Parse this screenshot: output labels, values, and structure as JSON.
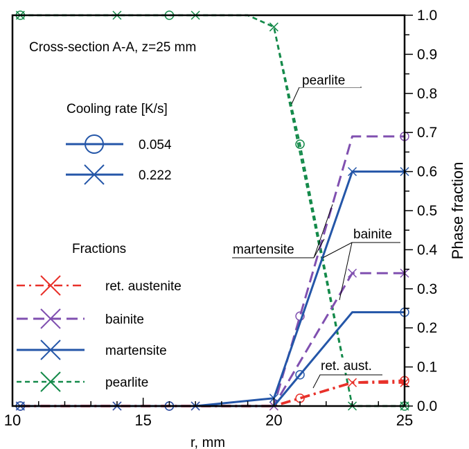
{
  "chart_data": {
    "type": "line",
    "title": "Cross-section A-A, z=25 mm",
    "xlabel": "r, mm",
    "ylabel": "Phase fraction",
    "xlim": [
      10,
      25
    ],
    "ylim": [
      0,
      1
    ],
    "x_ticks": [
      10,
      15,
      20,
      25
    ],
    "x_tick_labels": [
      "10",
      "15",
      "20",
      "25"
    ],
    "y_ticks": [
      0,
      0.1,
      0.2,
      0.3,
      0.4,
      0.5,
      0.6,
      0.7,
      0.8,
      0.9,
      1.0
    ],
    "y_tick_labels": [
      "0.0",
      "0.1",
      "0.2",
      "0.3",
      "0.4",
      "0.5",
      "0.6",
      "0.7",
      "0.8",
      "0.9",
      "1.0"
    ],
    "y_axis_position": "right",
    "grid": false,
    "legend_cooling": {
      "title": "Cooling rate [K/s]",
      "entries": [
        {
          "label": "0.054",
          "marker": "circle"
        },
        {
          "label": "0.222",
          "marker": "cross"
        }
      ]
    },
    "legend_fractions": {
      "title": "Fractions",
      "entries": [
        {
          "label": "ret. austenite",
          "phase": "ret_austenite"
        },
        {
          "label": "bainite",
          "phase": "bainite"
        },
        {
          "label": "martensite",
          "phase": "martensite"
        },
        {
          "label": "pearlite",
          "phase": "pearlite"
        }
      ]
    },
    "annotations": {
      "pearlite": "pearlite",
      "bainite": "bainite",
      "martensite": "martensite",
      "ret_aust": "ret. aust."
    },
    "phase_styles": {
      "ret_austenite": {
        "color": "#e8312a",
        "dash": "14 6 3 6",
        "width": 3.5
      },
      "bainite": {
        "color": "#8050b0",
        "dash": "16 8",
        "width": 3
      },
      "martensite": {
        "color": "#2456a8",
        "dash": "",
        "width": 3
      },
      "pearlite": {
        "color": "#148a4a",
        "dash": "7 5",
        "width": 2.5
      }
    },
    "series": [
      {
        "phase": "pearlite",
        "rate": "0.054",
        "marker": "circle",
        "x": [
          10.3,
          16,
          19,
          20,
          21,
          23,
          25
        ],
        "y": [
          1.0,
          1.0,
          1.0,
          0.97,
          0.67,
          0.0,
          0.0
        ],
        "marker_x": [
          10.3,
          16,
          21,
          25
        ],
        "marker_y": [
          1.0,
          1.0,
          0.67,
          0.0
        ]
      },
      {
        "phase": "pearlite",
        "rate": "0.222",
        "marker": "cross",
        "x": [
          10.3,
          14,
          17,
          19,
          20,
          23,
          25
        ],
        "y": [
          1.0,
          1.0,
          1.0,
          1.0,
          0.97,
          0.0,
          0.0
        ],
        "marker_x": [
          10.3,
          14,
          17,
          20,
          23,
          25
        ],
        "marker_y": [
          1.0,
          1.0,
          1.0,
          0.97,
          0.0,
          0.0
        ]
      },
      {
        "phase": "ret_austenite",
        "rate": "0.054",
        "marker": "circle",
        "x": [
          10.3,
          16,
          20,
          21,
          23,
          25
        ],
        "y": [
          0.0,
          0.0,
          0.0,
          0.02,
          0.06,
          0.065
        ],
        "marker_x": [
          10.3,
          16,
          21,
          25
        ],
        "marker_y": [
          0.0,
          0.0,
          0.02,
          0.065
        ]
      },
      {
        "phase": "ret_austenite",
        "rate": "0.222",
        "marker": "cross",
        "x": [
          10.3,
          14,
          17,
          20,
          23,
          25
        ],
        "y": [
          0.0,
          0.0,
          0.0,
          0.0,
          0.06,
          0.06
        ],
        "marker_x": [
          10.3,
          14,
          17,
          20,
          23,
          25
        ],
        "marker_y": [
          0.0,
          0.0,
          0.0,
          0.0,
          0.06,
          0.06
        ]
      },
      {
        "phase": "bainite",
        "rate": "0.054",
        "marker": "circle",
        "x": [
          10.3,
          16,
          20,
          21,
          23,
          25
        ],
        "y": [
          0.0,
          0.0,
          0.0,
          0.23,
          0.69,
          0.69
        ],
        "marker_x": [
          10.3,
          16,
          21,
          25
        ],
        "marker_y": [
          0.0,
          0.0,
          0.23,
          0.69
        ]
      },
      {
        "phase": "bainite",
        "rate": "0.222",
        "marker": "cross",
        "x": [
          10.3,
          14,
          17,
          20,
          23,
          25
        ],
        "y": [
          0.0,
          0.0,
          0.0,
          0.0,
          0.34,
          0.34
        ],
        "marker_x": [
          10.3,
          14,
          17,
          20,
          23,
          25
        ],
        "marker_y": [
          0.0,
          0.0,
          0.0,
          0.0,
          0.34,
          0.34
        ]
      },
      {
        "phase": "martensite",
        "rate": "0.054",
        "marker": "circle",
        "x": [
          10.3,
          16,
          20,
          21,
          23,
          25
        ],
        "y": [
          0.0,
          0.0,
          0.0,
          0.08,
          0.24,
          0.24
        ],
        "marker_x": [
          10.3,
          16,
          21,
          25
        ],
        "marker_y": [
          0.0,
          0.0,
          0.08,
          0.24
        ]
      },
      {
        "phase": "martensite",
        "rate": "0.222",
        "marker": "cross",
        "x": [
          10.3,
          14,
          17,
          20,
          23,
          25
        ],
        "y": [
          0.0,
          0.0,
          0.0,
          0.02,
          0.6,
          0.6
        ],
        "marker_x": [
          10.3,
          14,
          17,
          20,
          23,
          25
        ],
        "marker_y": [
          0.0,
          0.0,
          0.0,
          0.02,
          0.6,
          0.6
        ]
      }
    ]
  }
}
